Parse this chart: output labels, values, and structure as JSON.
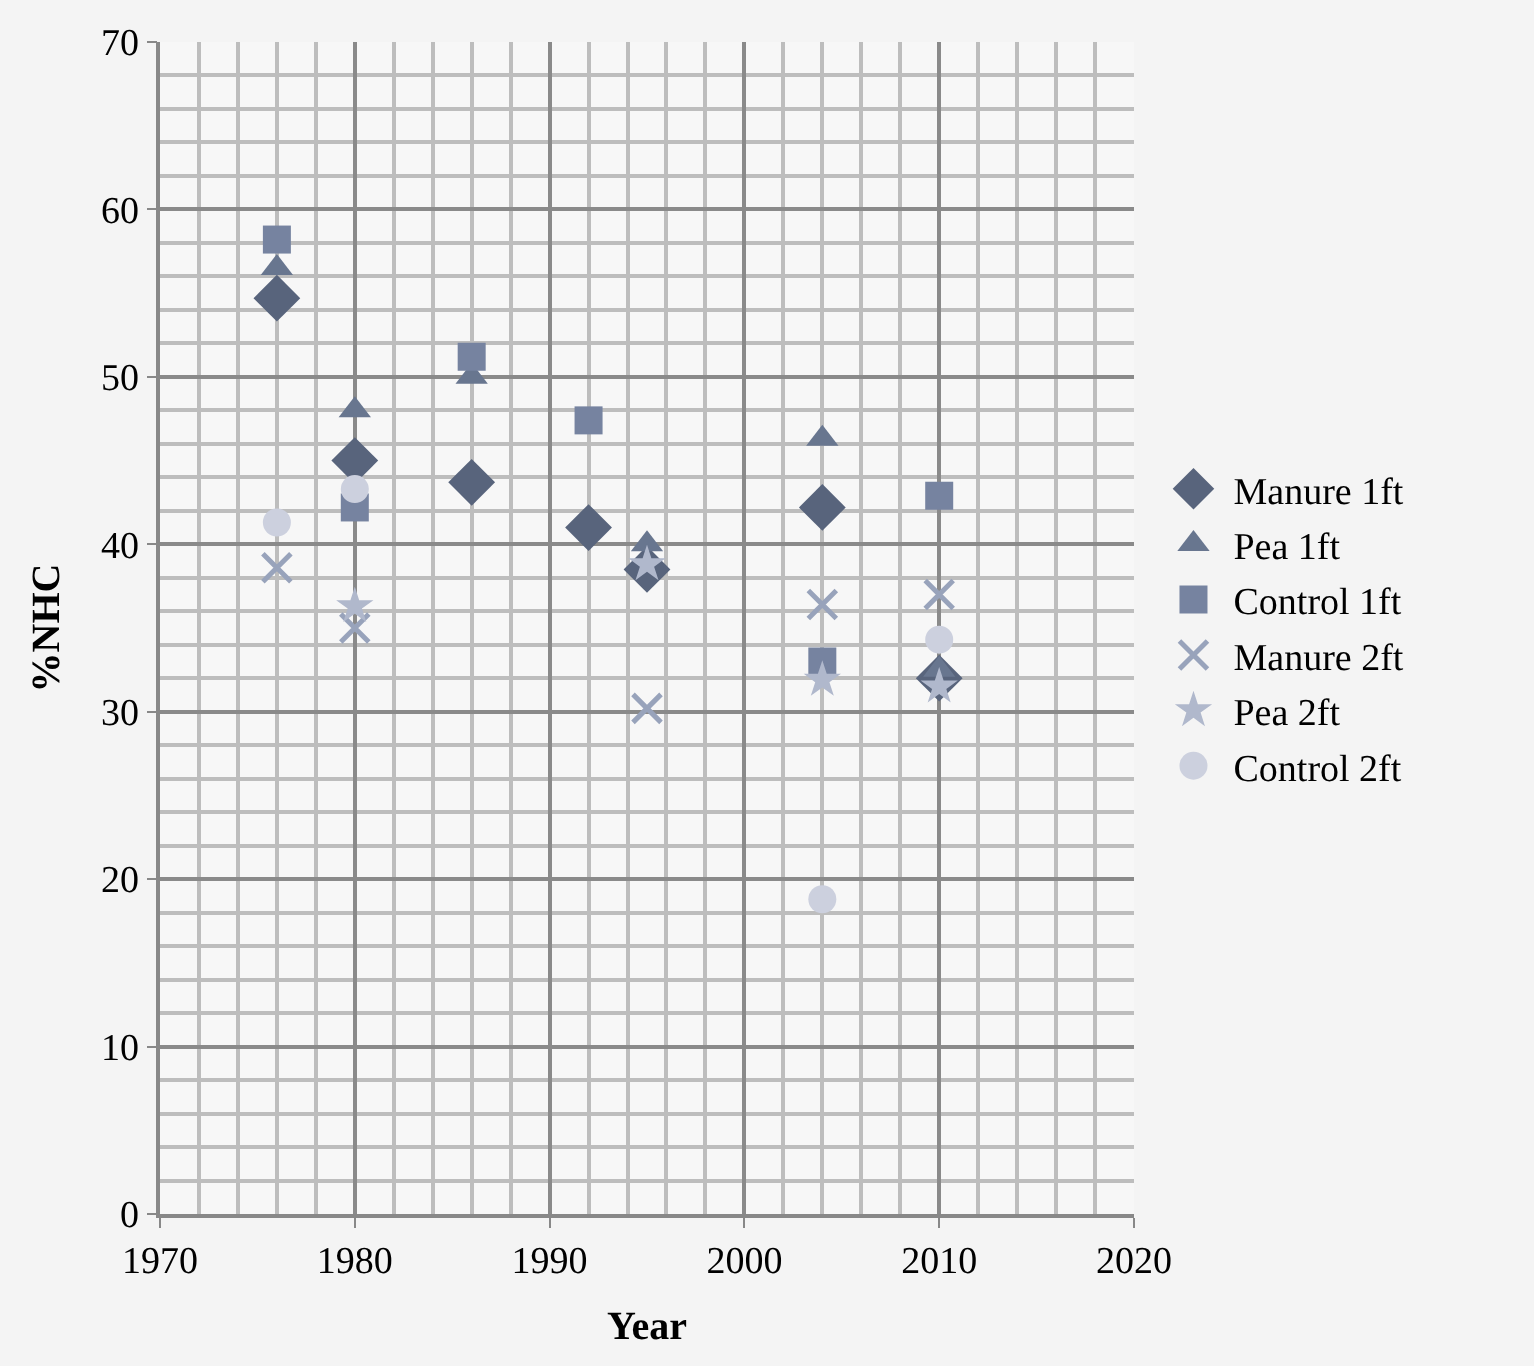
{
  "chart_data": {
    "type": "scatter",
    "xlabel": "Year",
    "ylabel": "%NHC",
    "x": [
      1976,
      1980,
      1986,
      1992,
      1995,
      2004,
      2010
    ],
    "series": [
      {
        "name": "Manure 1ft",
        "color": "#58647c",
        "marker": "diamond",
        "values": [
          54.7,
          45,
          43.7,
          41,
          38.5,
          42.2,
          32
        ]
      },
      {
        "name": "Pea 1ft",
        "color": "#68768f",
        "marker": "triangle",
        "values": [
          56.5,
          48,
          50,
          null,
          40,
          46.3,
          32.5
        ]
      },
      {
        "name": "Control 1ft",
        "color": "#7683a0",
        "marker": "square",
        "values": [
          58.2,
          42.2,
          51.2,
          47.4,
          null,
          33,
          42.9
        ]
      },
      {
        "name": "Manure 2ft",
        "color": "#98a3bb",
        "marker": "cross",
        "values": [
          38.6,
          35,
          null,
          null,
          30.2,
          36.4,
          37
        ]
      },
      {
        "name": "Pea 2ft",
        "color": "#b0b8cc",
        "marker": "star",
        "values": [
          null,
          36.3,
          null,
          null,
          38.8,
          31.9,
          31.5
        ]
      },
      {
        "name": "Control 2ft",
        "color": "#ccd0de",
        "marker": "circle",
        "values": [
          41.3,
          43.3,
          null,
          null,
          null,
          18.8,
          34.3
        ]
      }
    ],
    "xlim": [
      1970,
      2020
    ],
    "xticks": [
      1970,
      1980,
      1990,
      2000,
      2010,
      2020
    ],
    "ylim": [
      0,
      70
    ],
    "yticks": [
      0,
      10,
      20,
      30,
      40,
      50,
      60,
      70
    ],
    "grid": true,
    "legend": "right"
  }
}
